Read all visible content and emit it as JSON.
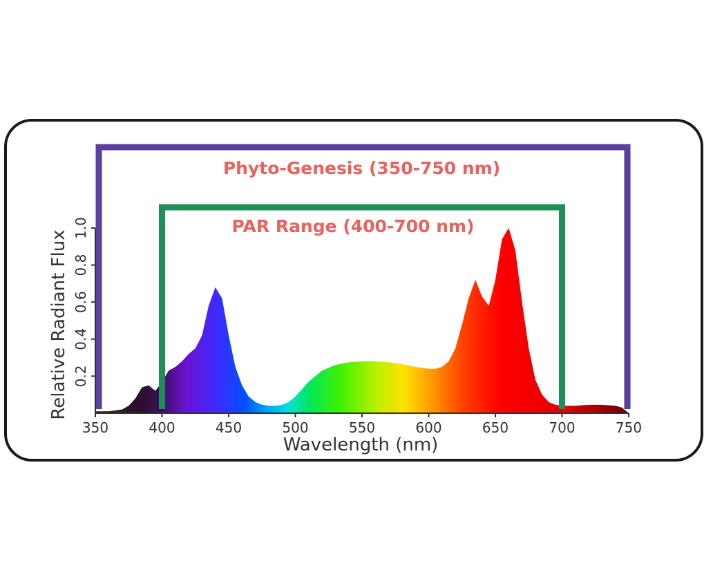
{
  "chart_data": {
    "type": "area",
    "title": "",
    "xlabel": "Wavelength (nm)",
    "ylabel": "Relative Radiant Flux",
    "xlim": [
      350,
      750
    ],
    "ylim": [
      0,
      1.0
    ],
    "x_ticks": [
      "350",
      "400",
      "450",
      "500",
      "550",
      "600",
      "650",
      "700",
      "750"
    ],
    "y_ticks": [
      "0.2",
      "0.4",
      "0.6",
      "0.8",
      "1.0"
    ],
    "grid": false,
    "legend": "none",
    "series": [
      {
        "x": [
          350,
          360,
          365,
          370,
          375,
          380,
          385,
          390,
          395,
          400,
          405,
          410,
          415,
          420,
          425,
          430,
          435,
          440,
          445,
          450,
          455,
          460,
          465,
          470,
          475,
          480,
          485,
          490,
          495,
          500,
          505,
          510,
          520,
          530,
          540,
          550,
          560,
          570,
          580,
          590,
          600,
          605,
          610,
          615,
          620,
          625,
          630,
          635,
          640,
          645,
          650,
          655,
          660,
          665,
          670,
          675,
          680,
          685,
          690,
          695,
          700,
          710,
          720,
          730,
          740,
          745,
          750
        ],
        "y": [
          0.01,
          0.01,
          0.015,
          0.02,
          0.04,
          0.08,
          0.14,
          0.15,
          0.12,
          0.17,
          0.23,
          0.25,
          0.28,
          0.32,
          0.35,
          0.42,
          0.58,
          0.68,
          0.62,
          0.42,
          0.25,
          0.15,
          0.09,
          0.06,
          0.045,
          0.04,
          0.04,
          0.045,
          0.06,
          0.09,
          0.13,
          0.17,
          0.23,
          0.26,
          0.275,
          0.28,
          0.28,
          0.275,
          0.265,
          0.25,
          0.24,
          0.24,
          0.25,
          0.28,
          0.35,
          0.48,
          0.62,
          0.72,
          0.63,
          0.58,
          0.72,
          0.94,
          1.0,
          0.88,
          0.6,
          0.35,
          0.18,
          0.1,
          0.06,
          0.045,
          0.04,
          0.04,
          0.045,
          0.045,
          0.04,
          0.03,
          0.0
        ]
      }
    ],
    "ranges": [
      {
        "label": "Phyto-Genesis (350-750 nm)",
        "start": 350,
        "end": 750,
        "color": "#5b3f9e",
        "label_color": "#e8625e"
      },
      {
        "label": "PAR Range (400-700 nm)",
        "start": 400,
        "end": 700,
        "color": "#1f8f5a",
        "label_color": "#e8625e"
      }
    ]
  }
}
